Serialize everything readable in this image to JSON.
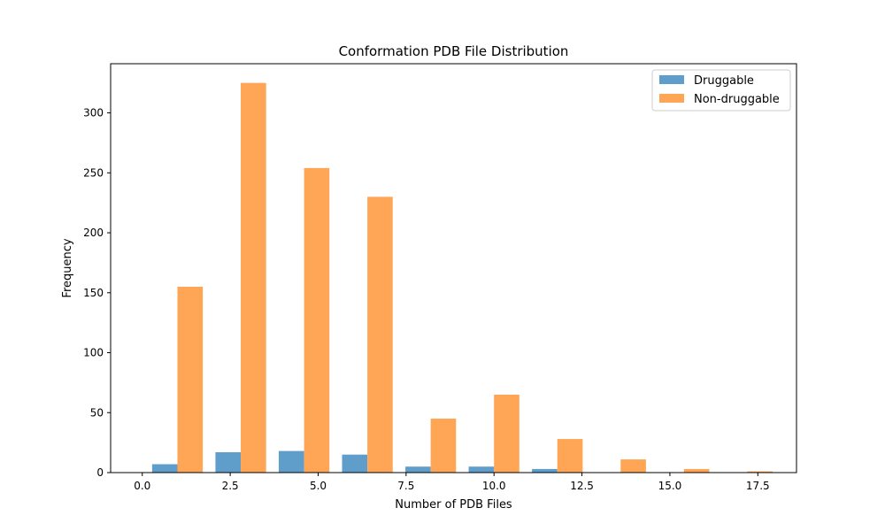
{
  "chart_data": {
    "type": "bar",
    "title": "Conformation PDB File Distribution",
    "xlabel": "Number of PDB Files",
    "ylabel": "Frequency",
    "xlim": [
      -0.9,
      18.6
    ],
    "ylim": [
      0,
      341
    ],
    "xticks": [
      0.0,
      2.5,
      5.0,
      7.5,
      10.0,
      12.5,
      15.0,
      17.5
    ],
    "xtick_labels": [
      "0.0",
      "2.5",
      "5.0",
      "7.5",
      "10.0",
      "12.5",
      "15.0",
      "17.5"
    ],
    "yticks": [
      0,
      50,
      100,
      150,
      200,
      250,
      300
    ],
    "ytick_labels": [
      "0",
      "50",
      "100",
      "150",
      "200",
      "250",
      "300"
    ],
    "bar_width": 0.72,
    "bin_centers": [
      1,
      2.8,
      4.6,
      6.4,
      8.2,
      10,
      11.8,
      13.6,
      15.4,
      17.2
    ],
    "series": [
      {
        "name": "Druggable",
        "color": "#5f9ecb",
        "offset": -0.36,
        "values": [
          7,
          17,
          18,
          15,
          5,
          5,
          3,
          0,
          0,
          0
        ]
      },
      {
        "name": "Non-druggable",
        "color": "#ffa556",
        "offset": 0.36,
        "values": [
          155,
          325,
          254,
          230,
          45,
          65,
          28,
          11,
          3,
          1
        ]
      }
    ],
    "grid": false,
    "legend_position": "top-right"
  }
}
